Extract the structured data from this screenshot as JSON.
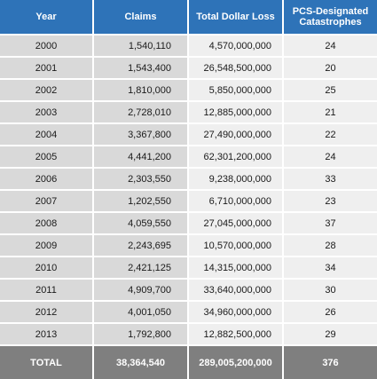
{
  "table": {
    "headers": [
      "Year",
      "Claims",
      "Total Dollar Loss",
      "PCS-Designated Catastrophes"
    ],
    "rows": [
      [
        "2000",
        "1,540,110",
        "4,570,000,000",
        "24"
      ],
      [
        "2001",
        "1,543,400",
        "26,548,500,000",
        "20"
      ],
      [
        "2002",
        "1,810,000",
        "5,850,000,000",
        "25"
      ],
      [
        "2003",
        "2,728,010",
        "12,885,000,000",
        "21"
      ],
      [
        "2004",
        "3,367,800",
        "27,490,000,000",
        "22"
      ],
      [
        "2005",
        "4,441,200",
        "62,301,200,000",
        "24"
      ],
      [
        "2006",
        "2,303,550",
        "9,238,000,000",
        "33"
      ],
      [
        "2007",
        "1,202,550",
        "6,710,000,000",
        "23"
      ],
      [
        "2008",
        "4,059,550",
        "27,045,000,000",
        "37"
      ],
      [
        "2009",
        "2,243,695",
        "10,570,000,000",
        "28"
      ],
      [
        "2010",
        "2,421,125",
        "14,315,000,000",
        "34"
      ],
      [
        "2011",
        "4,909,700",
        "33,640,000,000",
        "30"
      ],
      [
        "2012",
        "4,001,050",
        "34,960,000,000",
        "26"
      ],
      [
        "2013",
        "1,792,800",
        "12,882,500,000",
        "29"
      ]
    ],
    "total": [
      "TOTAL",
      "38,364,540",
      "289,005,200,000",
      "376"
    ]
  },
  "colors": {
    "header_bg": "#2e73b8",
    "row_dark": "#d9d9d9",
    "row_light": "#efefef",
    "total_bg": "#7f7f7f"
  }
}
